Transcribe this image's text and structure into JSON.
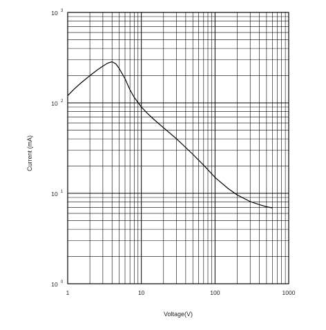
{
  "chart_data": {
    "type": "line",
    "title": "",
    "xlabel": "Voltage(V)",
    "ylabel": "Current (mA)",
    "xscale": "log",
    "yscale": "log",
    "xlim": [
      1,
      1000
    ],
    "ylim": [
      1,
      1000
    ],
    "grid": true,
    "x_ticks": [
      {
        "value": 1,
        "label": "1"
      },
      {
        "value": 10,
        "label": "10"
      },
      {
        "value": 100,
        "label": "100"
      },
      {
        "value": 1000,
        "label": "1000"
      }
    ],
    "y_ticks": [
      {
        "value": 1,
        "base": "10",
        "exp": "0"
      },
      {
        "value": 10,
        "base": "10",
        "exp": "1"
      },
      {
        "value": 100,
        "base": "10",
        "exp": "2"
      },
      {
        "value": 1000,
        "base": "10",
        "exp": "3"
      }
    ],
    "series": [
      {
        "x": [
          1,
          1.2,
          1.5,
          2,
          2.5,
          3,
          3.5,
          4,
          4.5,
          5,
          6,
          7,
          8,
          10,
          12,
          15,
          20,
          30,
          50,
          70,
          100,
          150,
          200,
          300,
          400,
          500,
          600
        ],
        "y": [
          120,
          140,
          165,
          200,
          230,
          255,
          275,
          285,
          270,
          240,
          185,
          140,
          115,
          90,
          77,
          65,
          53,
          40,
          27,
          20.5,
          15,
          11.3,
          9.6,
          8.1,
          7.5,
          7.1,
          6.9
        ]
      }
    ]
  }
}
